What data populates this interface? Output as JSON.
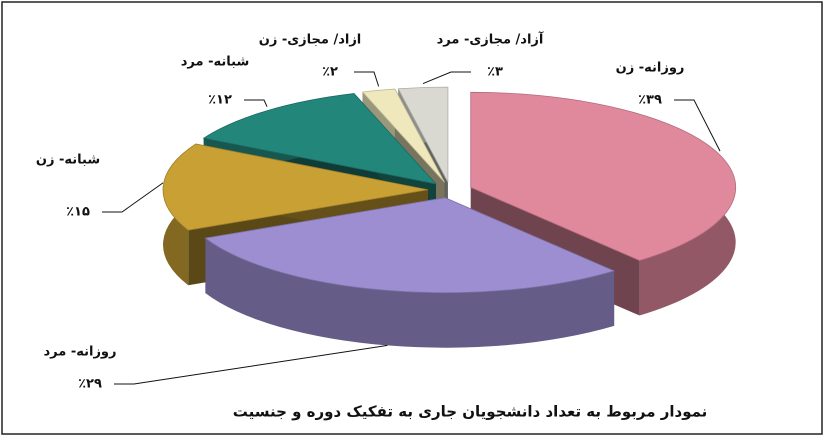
{
  "chart_data": {
    "type": "pie3d",
    "title": "نمودار مربوط به تعداد دانشجویان جاری به تفکیک دوره و جنسیت",
    "categories": [
      "روزانه- زن",
      "روزانه- مرد",
      "شبانه- زن",
      "شبانه- مرد",
      "ازاد/ مجازی- زن",
      "آزاد/ مجازی- مرد"
    ],
    "values": [
      39,
      29,
      15,
      12,
      2,
      3
    ],
    "value_labels": [
      "٪۳۹",
      "٪۲۹",
      "٪۱۵",
      "٪۱۲",
      "٪۲",
      "٪۳"
    ],
    "colors": [
      "#e0889c",
      "#9c8ed0",
      "#c9a034",
      "#23867a",
      "#efe8bc",
      "#d9d9d2"
    ]
  }
}
